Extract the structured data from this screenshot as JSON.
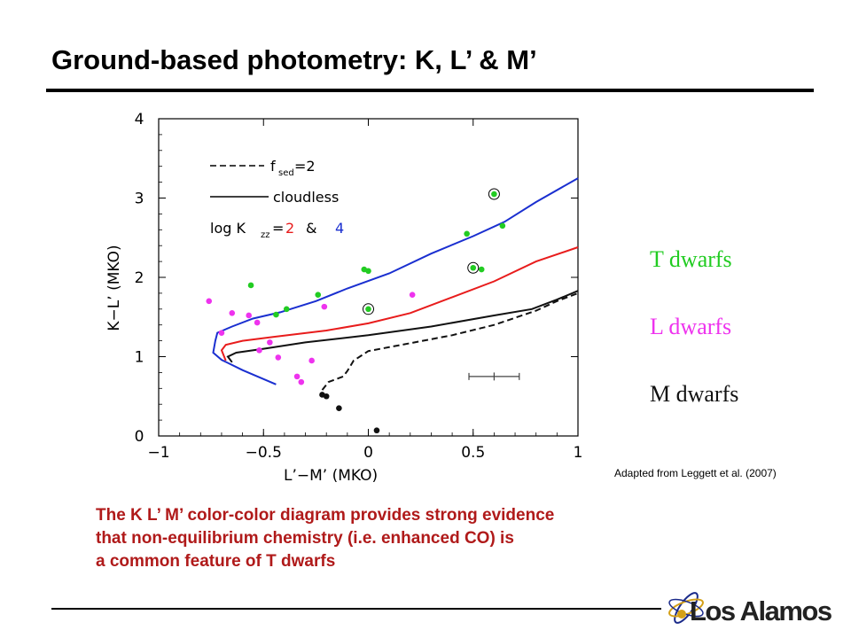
{
  "title": "Ground-based photometry: K, L’ & M’",
  "legend_labels": [
    {
      "text": "T dwarfs",
      "color": "#22cc22"
    },
    {
      "text": "L dwarfs",
      "color": "#ee33ee"
    },
    {
      "text": "M dwarfs",
      "color": "#111111"
    }
  ],
  "credit": "Adapted  from Leggett et al. (2007)",
  "caption": [
    "The K L’ M’ color-color diagram provides strong evidence",
    "that non-equilibrium chemistry (i.e. enhanced CO) is",
    "a common feature of T dwarfs"
  ],
  "logo_text": "Los Alamos",
  "colors": {
    "red_text": "#b01a1a",
    "T": "#22cc22",
    "L": "#ee33ee",
    "M": "#111111",
    "blue": "#1a2fd0",
    "red": "#e81c1c"
  },
  "chart_data": {
    "type": "scatter",
    "xlabel": "L’−M’  (MKO)",
    "ylabel": "K−L’  (MKO)",
    "xlim": [
      -1,
      1
    ],
    "ylim": [
      0,
      4
    ],
    "x_ticks": [
      -1,
      -0.5,
      0,
      0.5,
      1
    ],
    "x_tick_labels": [
      "−1",
      "−0.5",
      "0",
      "0.5",
      "1"
    ],
    "y_ticks": [
      0,
      1,
      2,
      3,
      4
    ],
    "y_tick_labels": [
      "0",
      "1",
      "2",
      "3",
      "4"
    ],
    "inset_legend": {
      "fsed_label": "f",
      "fsed_sub": "sed",
      "fsed_value": "=2",
      "cloudless_label": "cloudless",
      "logk_label": "log  K",
      "logk_sub": "zz",
      "logk_eq": "=",
      "logk_val1": "2",
      "logk_amp": "&",
      "logk_val2": "4"
    },
    "series": [
      {
        "name": "T dwarfs",
        "color": "#22cc22",
        "points": [
          [
            0.6,
            3.05
          ],
          [
            0.64,
            2.65
          ],
          [
            0.47,
            2.55
          ],
          [
            0.5,
            2.12
          ],
          [
            0.54,
            2.1
          ],
          [
            -0.02,
            2.1
          ],
          [
            0.0,
            2.08
          ],
          [
            -0.24,
            1.78
          ],
          [
            -0.56,
            1.9
          ],
          [
            -0.39,
            1.6
          ],
          [
            -0.44,
            1.53
          ],
          [
            0.0,
            1.6
          ]
        ]
      },
      {
        "name": "L dwarfs",
        "color": "#ee33ee",
        "points": [
          [
            -0.76,
            1.7
          ],
          [
            -0.65,
            1.55
          ],
          [
            -0.57,
            1.52
          ],
          [
            -0.53,
            1.43
          ],
          [
            -0.7,
            1.3
          ],
          [
            -0.21,
            1.63
          ],
          [
            0.21,
            1.78
          ],
          [
            -0.47,
            1.18
          ],
          [
            -0.52,
            1.08
          ],
          [
            -0.43,
            0.99
          ],
          [
            -0.27,
            0.95
          ],
          [
            -0.34,
            0.75
          ],
          [
            -0.32,
            0.68
          ]
        ]
      },
      {
        "name": "M dwarfs",
        "color": "#111111",
        "points": [
          [
            -0.22,
            0.52
          ],
          [
            -0.2,
            0.5
          ],
          [
            -0.14,
            0.35
          ],
          [
            0.04,
            0.07
          ]
        ]
      }
    ],
    "circled_points": [
      [
        0.6,
        3.05
      ],
      [
        0.5,
        2.12
      ],
      [
        0.0,
        1.6
      ]
    ],
    "error_bar": {
      "x": 0.6,
      "y": 0.75,
      "xerr": 0.12,
      "yerr": 0.05
    },
    "models": [
      {
        "label": "log Kzz = 4, cloudless",
        "color": "#1a2fd0",
        "dash": "solid",
        "points": [
          [
            -0.44,
            0.65
          ],
          [
            -0.6,
            0.83
          ],
          [
            -0.7,
            0.96
          ],
          [
            -0.74,
            1.05
          ],
          [
            -0.73,
            1.2
          ],
          [
            -0.72,
            1.3
          ],
          [
            -0.65,
            1.38
          ],
          [
            -0.55,
            1.48
          ],
          [
            -0.42,
            1.56
          ],
          [
            -0.25,
            1.7
          ],
          [
            -0.1,
            1.86
          ],
          [
            0.1,
            2.05
          ],
          [
            0.3,
            2.3
          ],
          [
            0.5,
            2.52
          ],
          [
            0.65,
            2.7
          ],
          [
            0.8,
            2.95
          ],
          [
            1.0,
            3.25
          ]
        ]
      },
      {
        "label": "log Kzz = 2, cloudless",
        "color": "#e81c1c",
        "dash": "solid",
        "points": [
          [
            -0.68,
            0.95
          ],
          [
            -0.7,
            1.08
          ],
          [
            -0.68,
            1.15
          ],
          [
            -0.6,
            1.2
          ],
          [
            -0.45,
            1.25
          ],
          [
            -0.2,
            1.33
          ],
          [
            0.0,
            1.42
          ],
          [
            0.2,
            1.55
          ],
          [
            0.4,
            1.75
          ],
          [
            0.6,
            1.95
          ],
          [
            0.8,
            2.2
          ],
          [
            1.0,
            2.38
          ]
        ]
      },
      {
        "label": "cloudless",
        "color": "#111111",
        "dash": "solid",
        "points": [
          [
            -0.65,
            0.93
          ],
          [
            -0.67,
            1.0
          ],
          [
            -0.63,
            1.05
          ],
          [
            -0.5,
            1.1
          ],
          [
            -0.3,
            1.18
          ],
          [
            0.0,
            1.27
          ],
          [
            0.3,
            1.38
          ],
          [
            0.6,
            1.52
          ],
          [
            0.78,
            1.6
          ],
          [
            0.9,
            1.72
          ],
          [
            1.0,
            1.83
          ]
        ]
      },
      {
        "label": "fsed = 2",
        "color": "#111111",
        "dash": "dashed",
        "points": [
          [
            -0.22,
            0.58
          ],
          [
            -0.19,
            0.68
          ],
          [
            -0.12,
            0.75
          ],
          [
            -0.1,
            0.82
          ],
          [
            -0.07,
            0.95
          ],
          [
            0.0,
            1.07
          ],
          [
            0.2,
            1.17
          ],
          [
            0.4,
            1.27
          ],
          [
            0.6,
            1.4
          ],
          [
            0.8,
            1.58
          ],
          [
            0.9,
            1.7
          ],
          [
            1.0,
            1.8
          ]
        ]
      }
    ]
  }
}
